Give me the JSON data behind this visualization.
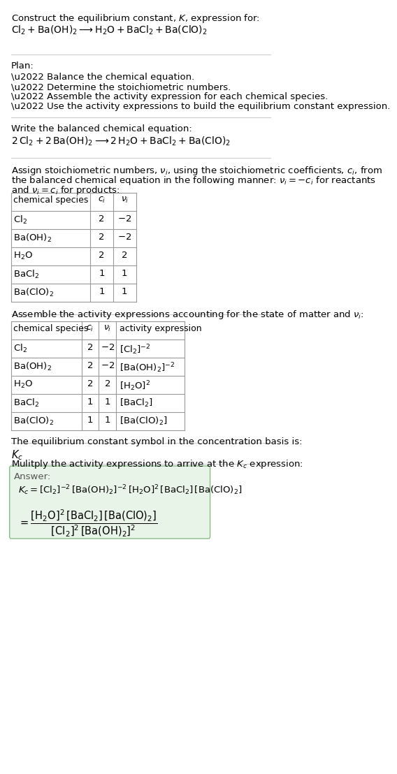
{
  "title_line1": "Construct the equilibrium constant, $K$, expression for:",
  "title_line2": "$\\mathrm{Cl_2 + Ba(OH)_2 \\longrightarrow H_2O + BaCl_2 + Ba(ClO)_2}$",
  "plan_header": "Plan:",
  "plan_items": [
    "\\u2022 Balance the chemical equation.",
    "\\u2022 Determine the stoichiometric numbers.",
    "\\u2022 Assemble the activity expression for each chemical species.",
    "\\u2022 Use the activity expressions to build the equilibrium constant expression."
  ],
  "balanced_eq_header": "Write the balanced chemical equation:",
  "balanced_eq": "$\\mathrm{2\\,Cl_2 + 2\\,Ba(OH)_2 \\longrightarrow 2\\,H_2O + BaCl_2 + Ba(ClO)_2}$",
  "stoich_text_lines": [
    "Assign stoichiometric numbers, $\\nu_i$, using the stoichiometric coefficients, $c_i$, from",
    "the balanced chemical equation in the following manner: $\\nu_i = -c_i$ for reactants",
    "and $\\nu_i = c_i$ for products:"
  ],
  "table1_rows": [
    [
      "$\\mathrm{Cl_2}$",
      "2",
      "$-2$"
    ],
    [
      "$\\mathrm{Ba(OH)_2}$",
      "2",
      "$-2$"
    ],
    [
      "$\\mathrm{H_2O}$",
      "2",
      "2"
    ],
    [
      "$\\mathrm{BaCl_2}$",
      "1",
      "1"
    ],
    [
      "$\\mathrm{Ba(ClO)_2}$",
      "1",
      "1"
    ]
  ],
  "assemble_text": "Assemble the activity expressions accounting for the state of matter and $\\nu_i$:",
  "table2_rows": [
    [
      "$\\mathrm{Cl_2}$",
      "2",
      "$-2$",
      "$[\\mathrm{Cl_2}]^{-2}$"
    ],
    [
      "$\\mathrm{Ba(OH)_2}$",
      "2",
      "$-2$",
      "$[\\mathrm{Ba(OH)_2}]^{-2}$"
    ],
    [
      "$\\mathrm{H_2O}$",
      "2",
      "2",
      "$[\\mathrm{H_2O}]^{2}$"
    ],
    [
      "$\\mathrm{BaCl_2}$",
      "1",
      "1",
      "$[\\mathrm{BaCl_2}]$"
    ],
    [
      "$\\mathrm{Ba(ClO)_2}$",
      "1",
      "1",
      "$[\\mathrm{Ba(ClO)_2}]$"
    ]
  ],
  "kc_text": "The equilibrium constant symbol in the concentration basis is:",
  "kc_symbol": "$K_c$",
  "multiply_text": "Mulitply the activity expressions to arrive at the $K_c$ expression:",
  "answer_label": "Answer:",
  "answer_line1": "$K_c = [\\mathrm{Cl_2}]^{-2}\\,[\\mathrm{Ba(OH)_2}]^{-2}\\,[\\mathrm{H_2O}]^{2}\\,[\\mathrm{BaCl_2}]\\,[\\mathrm{Ba(ClO)_2}]$",
  "answer_line2": "$= \\dfrac{[\\mathrm{H_2O}]^2\\,[\\mathrm{BaCl_2}]\\,[\\mathrm{Ba(ClO)_2}]}{[\\mathrm{Cl_2}]^2\\,[\\mathrm{Ba(OH)_2}]^2}$",
  "bg_color": "#ffffff",
  "table_border_color": "#999999",
  "answer_box_color": "#e8f4e8",
  "answer_box_border": "#88bb88",
  "separator_color": "#cccccc",
  "text_color": "#000000",
  "font_size": 9.5
}
